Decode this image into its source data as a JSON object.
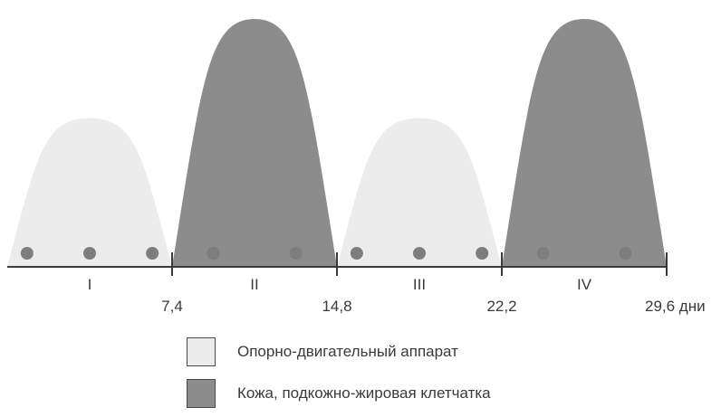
{
  "colors": {
    "light": "#ececec",
    "dark": "#8c8c8c",
    "dot": "#7d7d7d",
    "axis": "#3a3a3a"
  },
  "ticks": [
    "7,4",
    "14,8",
    "22,2",
    "29,6 дни"
  ],
  "phases": [
    {
      "label": "I",
      "type": "light",
      "start": 0,
      "end": 7.4,
      "height": 0.6,
      "dots": 3
    },
    {
      "label": "II",
      "type": "dark",
      "start": 7.4,
      "end": 14.8,
      "height": 1.0,
      "dots": 2
    },
    {
      "label": "III",
      "type": "light",
      "start": 14.8,
      "end": 22.2,
      "height": 0.6,
      "dots": 3
    },
    {
      "label": "IV",
      "type": "dark",
      "start": 22.2,
      "end": 29.6,
      "height": 1.0,
      "dots": 2
    }
  ],
  "legend": [
    {
      "label": "Опорно-двигательный аппарат",
      "type": "light"
    },
    {
      "label": "Кожа, подкожно-жировая клетчатка",
      "type": "dark"
    }
  ]
}
